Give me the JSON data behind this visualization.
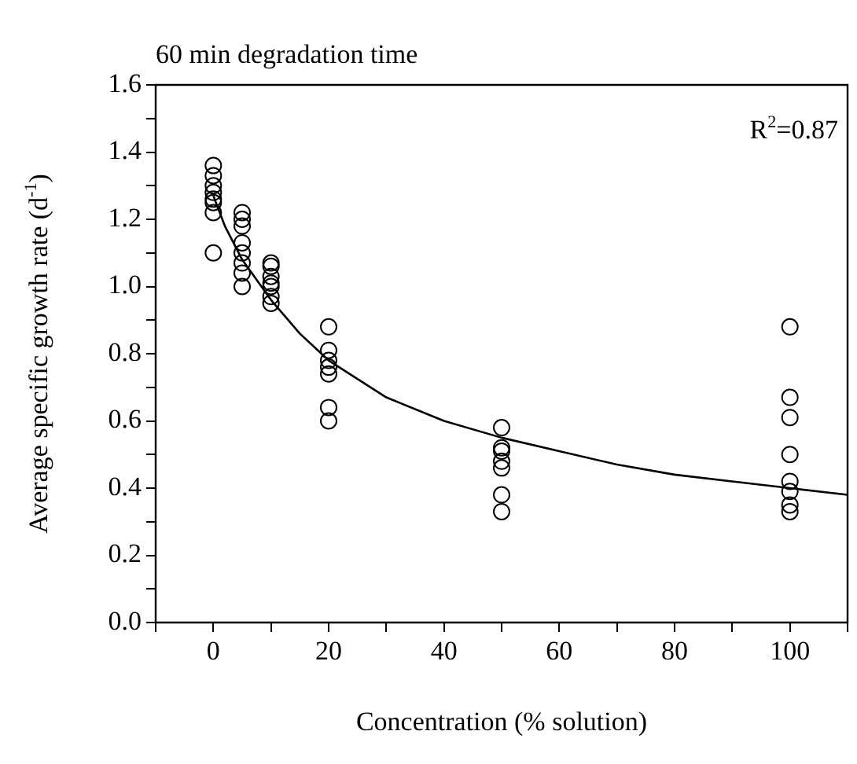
{
  "chart_data": {
    "type": "scatter",
    "title": "60 min degradation time",
    "xlabel": "Concentration (% solution)",
    "ylabel": "Average specific growth rate (d$^{-1}$)",
    "annotations": [
      "R$^{2}$=0.87"
    ],
    "xlim": [
      -10,
      110
    ],
    "xticks": [
      {
        "value": -10,
        "label": null
      },
      0,
      {
        "value": 10,
        "label": null
      },
      20,
      {
        "value": 30,
        "label": null
      },
      40,
      {
        "value": 50,
        "label": null
      },
      60,
      {
        "value": 70,
        "label": null
      },
      80,
      {
        "value": 90,
        "label": null
      },
      100,
      {
        "value": 110,
        "label": null
      }
    ],
    "ylim": [
      0,
      1.6
    ],
    "yticks": [
      {
        "value": 0,
        "label": "0.0"
      },
      {
        "value": 0.1,
        "label": null
      },
      0.2,
      {
        "value": 0.3,
        "label": null
      },
      0.4,
      {
        "value": 0.5,
        "label": null
      },
      0.6,
      {
        "value": 0.7,
        "label": null
      },
      0.8,
      {
        "value": 0.9,
        "label": null
      },
      {
        "value": 1,
        "label": "1.0"
      },
      {
        "value": 1.1,
        "label": null
      },
      1.2,
      {
        "value": 1.3,
        "label": null
      },
      1.4,
      {
        "value": 1.5,
        "label": null
      },
      1.6
    ],
    "grid": false,
    "legend": false,
    "marker": "circle",
    "series": [
      {
        "type": "scatter",
        "color": "#000000",
        "x": [
          0,
          0,
          0,
          0,
          0,
          0,
          0,
          0,
          5,
          5,
          5,
          5,
          5,
          5,
          5,
          5,
          10,
          10,
          10,
          10,
          10,
          10,
          10,
          20,
          20,
          20,
          20,
          20,
          20,
          20,
          50,
          50,
          50,
          50,
          50,
          50,
          50,
          100,
          100,
          100,
          100,
          100,
          100,
          100,
          100
        ],
        "values": [
          1.36,
          1.33,
          1.3,
          1.28,
          1.26,
          1.25,
          1.22,
          1.1,
          1.22,
          1.2,
          1.18,
          1.13,
          1.1,
          1.07,
          1.04,
          1.0,
          1.07,
          1.06,
          1.03,
          1.01,
          1.0,
          0.97,
          0.95,
          0.88,
          0.81,
          0.78,
          0.76,
          0.74,
          0.64,
          0.6,
          0.58,
          0.52,
          0.51,
          0.48,
          0.46,
          0.38,
          0.33,
          0.88,
          0.67,
          0.61,
          0.5,
          0.42,
          0.39,
          0.35,
          0.33
        ]
      },
      {
        "type": "line",
        "color": "#000000",
        "marker": "none",
        "line_style": "solid",
        "x": [
          0,
          2,
          5,
          10,
          15,
          20,
          30,
          40,
          50,
          60,
          70,
          80,
          90,
          100,
          110
        ],
        "values": [
          1.27,
          1.18,
          1.08,
          0.96,
          0.86,
          0.78,
          0.67,
          0.6,
          0.55,
          0.51,
          0.47,
          0.44,
          0.42,
          0.4,
          0.38
        ]
      }
    ]
  }
}
